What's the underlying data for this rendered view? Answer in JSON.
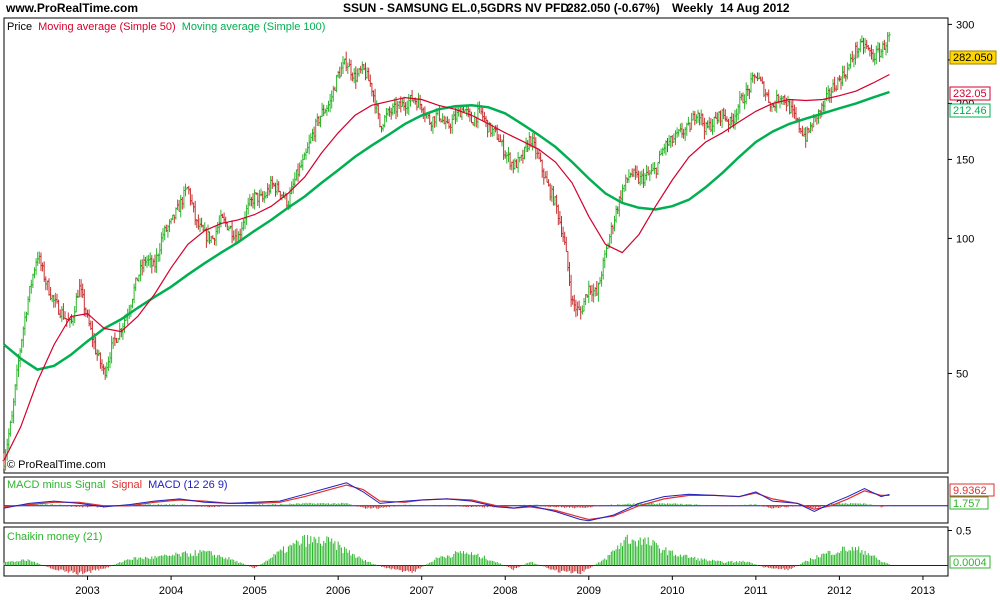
{
  "header": {
    "site": "www.ProRealTime.com",
    "instrument": "SSUN - SAMSUNG EL.0,5GDRS NV PFD",
    "price_change": "282.050 (-0.67%)",
    "period": "Weekly",
    "date": "14 Aug 2012"
  },
  "copyright": "© ProRealTime.com",
  "colors": {
    "candle_up": "#2db52d",
    "candle_down": "#c83030",
    "ma50": "#d4002c",
    "ma100": "#00b050",
    "macd_line": "#2020c0",
    "signal_line": "#e03030",
    "hist_pos": "#2db52d",
    "hist_neg": "#c83030",
    "badge_price": "#ffd700",
    "zero_line": "#1010a0"
  },
  "chart_data": [
    {
      "type": "line",
      "panel": "price",
      "legend": {
        "price": "Price",
        "ma50": "Moving average (Simple 50)",
        "ma100": "Moving average (Simple 100)"
      },
      "scale": "log",
      "ylim": [
        30,
        310
      ],
      "y_ticks": [
        50,
        100,
        150,
        200,
        250,
        300
      ],
      "x_ticks": [
        "2003",
        "2004",
        "2005",
        "2006",
        "2007",
        "2008",
        "2009",
        "2010",
        "2011",
        "2012",
        "2013"
      ],
      "xlim": [
        2002.0,
        2013.3
      ],
      "badges": {
        "price": "282.050",
        "ma50": "232.05",
        "ma100": "212.46"
      },
      "price_path": [
        [
          2002.0,
          32
        ],
        [
          2002.1,
          40
        ],
        [
          2002.2,
          58
        ],
        [
          2002.3,
          75
        ],
        [
          2002.4,
          92
        ],
        [
          2002.5,
          80
        ],
        [
          2002.6,
          72
        ],
        [
          2002.7,
          68
        ],
        [
          2002.8,
          64
        ],
        [
          2002.9,
          78
        ],
        [
          2003.0,
          66
        ],
        [
          2003.1,
          56
        ],
        [
          2003.2,
          50
        ],
        [
          2003.3,
          58
        ],
        [
          2003.4,
          63
        ],
        [
          2003.5,
          70
        ],
        [
          2003.6,
          82
        ],
        [
          2003.7,
          90
        ],
        [
          2003.8,
          86
        ],
        [
          2003.9,
          102
        ],
        [
          2004.0,
          108
        ],
        [
          2004.1,
          118
        ],
        [
          2004.2,
          130
        ],
        [
          2004.3,
          108
        ],
        [
          2004.4,
          102
        ],
        [
          2004.5,
          100
        ],
        [
          2004.6,
          110
        ],
        [
          2004.7,
          106
        ],
        [
          2004.8,
          100
        ],
        [
          2004.9,
          115
        ],
        [
          2005.0,
          124
        ],
        [
          2005.1,
          122
        ],
        [
          2005.2,
          132
        ],
        [
          2005.3,
          128
        ],
        [
          2005.4,
          120
        ],
        [
          2005.5,
          138
        ],
        [
          2005.6,
          150
        ],
        [
          2005.7,
          172
        ],
        [
          2005.8,
          190
        ],
        [
          2005.9,
          200
        ],
        [
          2006.0,
          232
        ],
        [
          2006.1,
          248
        ],
        [
          2006.2,
          228
        ],
        [
          2006.3,
          238
        ],
        [
          2006.4,
          218
        ],
        [
          2006.5,
          178
        ],
        [
          2006.6,
          190
        ],
        [
          2006.7,
          195
        ],
        [
          2006.8,
          200
        ],
        [
          2006.9,
          205
        ],
        [
          2007.0,
          198
        ],
        [
          2007.1,
          182
        ],
        [
          2007.2,
          190
        ],
        [
          2007.3,
          176
        ],
        [
          2007.4,
          186
        ],
        [
          2007.5,
          196
        ],
        [
          2007.6,
          182
        ],
        [
          2007.7,
          192
        ],
        [
          2007.8,
          176
        ],
        [
          2007.9,
          170
        ],
        [
          2008.0,
          155
        ],
        [
          2008.1,
          145
        ],
        [
          2008.2,
          150
        ],
        [
          2008.3,
          168
        ],
        [
          2008.4,
          150
        ],
        [
          2008.5,
          132
        ],
        [
          2008.6,
          120
        ],
        [
          2008.7,
          100
        ],
        [
          2008.8,
          72
        ],
        [
          2008.9,
          68
        ],
        [
          2009.0,
          78
        ],
        [
          2009.1,
          75
        ],
        [
          2009.2,
          92
        ],
        [
          2009.3,
          110
        ],
        [
          2009.4,
          128
        ],
        [
          2009.5,
          140
        ],
        [
          2009.6,
          135
        ],
        [
          2009.7,
          138
        ],
        [
          2009.8,
          142
        ],
        [
          2009.9,
          160
        ],
        [
          2010.0,
          165
        ],
        [
          2010.1,
          172
        ],
        [
          2010.2,
          176
        ],
        [
          2010.3,
          194
        ],
        [
          2010.4,
          175
        ],
        [
          2010.5,
          182
        ],
        [
          2010.6,
          190
        ],
        [
          2010.7,
          180
        ],
        [
          2010.8,
          200
        ],
        [
          2010.9,
          212
        ],
        [
          2011.0,
          232
        ],
        [
          2011.1,
          214
        ],
        [
          2011.2,
          196
        ],
        [
          2011.3,
          210
        ],
        [
          2011.4,
          196
        ],
        [
          2011.5,
          180
        ],
        [
          2011.6,
          168
        ],
        [
          2011.7,
          184
        ],
        [
          2011.8,
          196
        ],
        [
          2011.9,
          214
        ],
        [
          2012.0,
          226
        ],
        [
          2012.1,
          238
        ],
        [
          2012.2,
          264
        ],
        [
          2012.3,
          270
        ],
        [
          2012.4,
          254
        ],
        [
          2012.5,
          262
        ],
        [
          2012.6,
          282
        ]
      ],
      "ma50_path": [
        [
          2002.0,
          32
        ],
        [
          2002.2,
          38
        ],
        [
          2002.4,
          48
        ],
        [
          2002.6,
          58
        ],
        [
          2002.8,
          67
        ],
        [
          2003.0,
          68
        ],
        [
          2003.2,
          63
        ],
        [
          2003.4,
          62
        ],
        [
          2003.6,
          67
        ],
        [
          2003.8,
          75
        ],
        [
          2004.0,
          86
        ],
        [
          2004.2,
          97
        ],
        [
          2004.4,
          104
        ],
        [
          2004.6,
          108
        ],
        [
          2004.8,
          110
        ],
        [
          2005.0,
          113
        ],
        [
          2005.2,
          118
        ],
        [
          2005.4,
          126
        ],
        [
          2005.6,
          137
        ],
        [
          2005.8,
          155
        ],
        [
          2006.0,
          172
        ],
        [
          2006.2,
          188
        ],
        [
          2006.4,
          198
        ],
        [
          2006.6,
          202
        ],
        [
          2006.8,
          206
        ],
        [
          2007.0,
          204
        ],
        [
          2007.2,
          198
        ],
        [
          2007.4,
          194
        ],
        [
          2007.6,
          188
        ],
        [
          2007.8,
          180
        ],
        [
          2008.0,
          172
        ],
        [
          2008.2,
          165
        ],
        [
          2008.4,
          158
        ],
        [
          2008.6,
          148
        ],
        [
          2008.8,
          133
        ],
        [
          2009.0,
          112
        ],
        [
          2009.2,
          97
        ],
        [
          2009.4,
          93
        ],
        [
          2009.6,
          102
        ],
        [
          2009.8,
          118
        ],
        [
          2010.0,
          135
        ],
        [
          2010.2,
          152
        ],
        [
          2010.4,
          164
        ],
        [
          2010.6,
          172
        ],
        [
          2010.8,
          182
        ],
        [
          2011.0,
          192
        ],
        [
          2011.2,
          200
        ],
        [
          2011.4,
          204
        ],
        [
          2011.6,
          203
        ],
        [
          2011.8,
          204
        ],
        [
          2012.0,
          208
        ],
        [
          2012.2,
          213
        ],
        [
          2012.4,
          222
        ],
        [
          2012.6,
          232
        ]
      ],
      "ma100_path": [
        [
          2002.0,
          58
        ],
        [
          2002.2,
          54
        ],
        [
          2002.4,
          51
        ],
        [
          2002.6,
          52
        ],
        [
          2002.8,
          55
        ],
        [
          2003.0,
          59
        ],
        [
          2003.2,
          63
        ],
        [
          2003.4,
          66
        ],
        [
          2003.6,
          70
        ],
        [
          2003.8,
          74
        ],
        [
          2004.0,
          78
        ],
        [
          2004.2,
          83
        ],
        [
          2004.4,
          88
        ],
        [
          2004.6,
          93
        ],
        [
          2004.8,
          98
        ],
        [
          2005.0,
          104
        ],
        [
          2005.2,
          110
        ],
        [
          2005.4,
          117
        ],
        [
          2005.6,
          124
        ],
        [
          2005.8,
          133
        ],
        [
          2006.0,
          142
        ],
        [
          2006.2,
          152
        ],
        [
          2006.4,
          161
        ],
        [
          2006.6,
          170
        ],
        [
          2006.8,
          180
        ],
        [
          2007.0,
          188
        ],
        [
          2007.2,
          194
        ],
        [
          2007.4,
          197
        ],
        [
          2007.6,
          198
        ],
        [
          2007.8,
          196
        ],
        [
          2008.0,
          190
        ],
        [
          2008.2,
          180
        ],
        [
          2008.4,
          170
        ],
        [
          2008.6,
          160
        ],
        [
          2008.8,
          148
        ],
        [
          2009.0,
          136
        ],
        [
          2009.2,
          126
        ],
        [
          2009.4,
          120
        ],
        [
          2009.6,
          117
        ],
        [
          2009.8,
          116
        ],
        [
          2010.0,
          118
        ],
        [
          2010.2,
          122
        ],
        [
          2010.4,
          130
        ],
        [
          2010.6,
          140
        ],
        [
          2010.8,
          152
        ],
        [
          2011.0,
          164
        ],
        [
          2011.2,
          173
        ],
        [
          2011.4,
          180
        ],
        [
          2011.6,
          185
        ],
        [
          2011.8,
          190
        ],
        [
          2012.0,
          195
        ],
        [
          2012.2,
          200
        ],
        [
          2012.4,
          206
        ],
        [
          2012.6,
          212
        ]
      ]
    },
    {
      "type": "line",
      "panel": "macd",
      "legend": {
        "hist": "MACD minus Signal",
        "signal": "Signal",
        "macd": "MACD (12 26 9)"
      },
      "ylim": [
        -15,
        25
      ],
      "badges": {
        "macd": "9.9362",
        "hist": "1.757"
      },
      "macd_path": [
        [
          2002.0,
          -2
        ],
        [
          2002.3,
          2
        ],
        [
          2002.6,
          4
        ],
        [
          2002.9,
          2
        ],
        [
          2003.2,
          -1
        ],
        [
          2003.5,
          1
        ],
        [
          2003.8,
          4
        ],
        [
          2004.1,
          6
        ],
        [
          2004.4,
          3
        ],
        [
          2004.7,
          2
        ],
        [
          2005.0,
          3
        ],
        [
          2005.3,
          4
        ],
        [
          2005.6,
          10
        ],
        [
          2005.9,
          16
        ],
        [
          2006.1,
          20
        ],
        [
          2006.3,
          12
        ],
        [
          2006.5,
          2
        ],
        [
          2006.8,
          4
        ],
        [
          2007.0,
          5
        ],
        [
          2007.3,
          6
        ],
        [
          2007.6,
          4
        ],
        [
          2007.9,
          -1
        ],
        [
          2008.1,
          -2
        ],
        [
          2008.3,
          0
        ],
        [
          2008.6,
          -5
        ],
        [
          2008.9,
          -12
        ],
        [
          2009.0,
          -13
        ],
        [
          2009.3,
          -8
        ],
        [
          2009.6,
          2
        ],
        [
          2009.9,
          8
        ],
        [
          2010.2,
          10
        ],
        [
          2010.5,
          9
        ],
        [
          2010.8,
          8
        ],
        [
          2011.0,
          12
        ],
        [
          2011.2,
          4
        ],
        [
          2011.5,
          2
        ],
        [
          2011.7,
          -5
        ],
        [
          2011.9,
          2
        ],
        [
          2012.1,
          8
        ],
        [
          2012.3,
          15
        ],
        [
          2012.5,
          8
        ],
        [
          2012.6,
          10
        ]
      ],
      "signal_path": [
        [
          2002.0,
          -1
        ],
        [
          2002.3,
          1
        ],
        [
          2002.6,
          3
        ],
        [
          2002.9,
          3
        ],
        [
          2003.2,
          0
        ],
        [
          2003.5,
          0
        ],
        [
          2003.8,
          3
        ],
        [
          2004.1,
          5
        ],
        [
          2004.4,
          4
        ],
        [
          2004.7,
          2
        ],
        [
          2005.0,
          2
        ],
        [
          2005.3,
          3
        ],
        [
          2005.6,
          8
        ],
        [
          2005.9,
          14
        ],
        [
          2006.1,
          18
        ],
        [
          2006.3,
          14
        ],
        [
          2006.5,
          4
        ],
        [
          2006.8,
          3
        ],
        [
          2007.0,
          5
        ],
        [
          2007.3,
          6
        ],
        [
          2007.6,
          5
        ],
        [
          2007.9,
          0
        ],
        [
          2008.1,
          -2
        ],
        [
          2008.3,
          -1
        ],
        [
          2008.6,
          -4
        ],
        [
          2008.9,
          -10
        ],
        [
          2009.0,
          -12
        ],
        [
          2009.3,
          -9
        ],
        [
          2009.6,
          0
        ],
        [
          2009.9,
          6
        ],
        [
          2010.2,
          9
        ],
        [
          2010.5,
          9
        ],
        [
          2010.8,
          8
        ],
        [
          2011.0,
          11
        ],
        [
          2011.2,
          6
        ],
        [
          2011.5,
          2
        ],
        [
          2011.7,
          -3
        ],
        [
          2011.9,
          0
        ],
        [
          2012.1,
          6
        ],
        [
          2012.3,
          13
        ],
        [
          2012.5,
          9
        ],
        [
          2012.6,
          9
        ]
      ]
    },
    {
      "type": "bar",
      "panel": "chaikin",
      "legend": {
        "name": "Chaikin money (21)"
      },
      "ylim": [
        -0.15,
        0.55
      ],
      "y_ticks": [
        0.5
      ],
      "badges": {
        "value": "0.0004"
      },
      "profile": [
        [
          2002.0,
          0.05
        ],
        [
          2002.3,
          0.08
        ],
        [
          2002.6,
          -0.06
        ],
        [
          2002.9,
          -0.12
        ],
        [
          2003.2,
          -0.05
        ],
        [
          2003.5,
          0.1
        ],
        [
          2003.8,
          0.12
        ],
        [
          2004.1,
          0.16
        ],
        [
          2004.4,
          0.2
        ],
        [
          2004.7,
          0.1
        ],
        [
          2005.0,
          -0.04
        ],
        [
          2005.3,
          0.2
        ],
        [
          2005.6,
          0.38
        ],
        [
          2005.9,
          0.35
        ],
        [
          2006.1,
          0.22
        ],
        [
          2006.3,
          0.08
        ],
        [
          2006.6,
          -0.05
        ],
        [
          2006.9,
          -0.1
        ],
        [
          2007.2,
          0.12
        ],
        [
          2007.5,
          0.2
        ],
        [
          2007.8,
          0.1
        ],
        [
          2008.1,
          -0.06
        ],
        [
          2008.3,
          0.06
        ],
        [
          2008.6,
          -0.08
        ],
        [
          2008.9,
          -0.12
        ],
        [
          2009.2,
          0.1
        ],
        [
          2009.45,
          0.4
        ],
        [
          2009.7,
          0.35
        ],
        [
          2010.0,
          0.18
        ],
        [
          2010.3,
          0.1
        ],
        [
          2010.6,
          0.05
        ],
        [
          2010.9,
          0.06
        ],
        [
          2011.1,
          -0.03
        ],
        [
          2011.4,
          -0.06
        ],
        [
          2011.7,
          0.12
        ],
        [
          2011.9,
          0.2
        ],
        [
          2012.1,
          0.25
        ],
        [
          2012.3,
          0.22
        ],
        [
          2012.5,
          0.06
        ],
        [
          2012.6,
          0.02
        ]
      ]
    }
  ]
}
